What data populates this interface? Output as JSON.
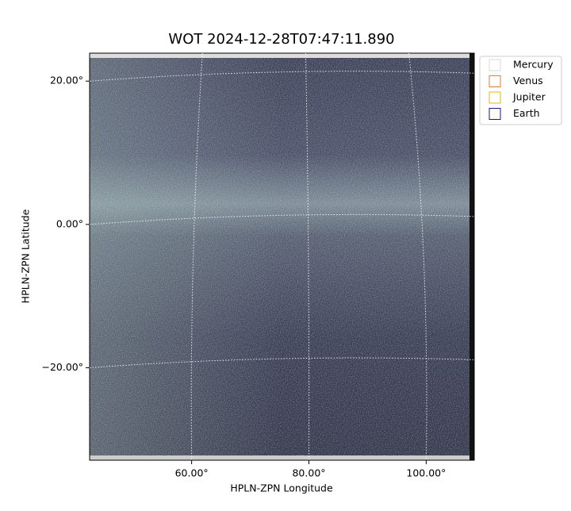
{
  "chart_data": {
    "type": "image",
    "title": "WOT 2024-12-28T07:47:11.890",
    "xlabel": "HPLN-ZPN Longitude",
    "ylabel": "HPLN-ZPN Latitude",
    "xlim": [
      42.6,
      108.2
    ],
    "ylim": [
      -32.9,
      23.9
    ],
    "xticks": [
      {
        "value": 60,
        "label": "60.00°"
      },
      {
        "value": 80,
        "label": "80.00°"
      },
      {
        "value": 100,
        "label": "100.00°"
      }
    ],
    "yticks": [
      {
        "value": -20,
        "label": "−20.00°"
      },
      {
        "value": 0,
        "label": "0.00°"
      },
      {
        "value": 20,
        "label": "20.00°"
      }
    ],
    "grid": true,
    "legend": [
      {
        "name": "Mercury",
        "color": "#d9d9d9"
      },
      {
        "name": "Venus",
        "color": "#e07b39"
      },
      {
        "name": "Jupiter",
        "color": "#e6b422"
      },
      {
        "name": "Earth",
        "color": "#1a1a7a"
      }
    ]
  }
}
